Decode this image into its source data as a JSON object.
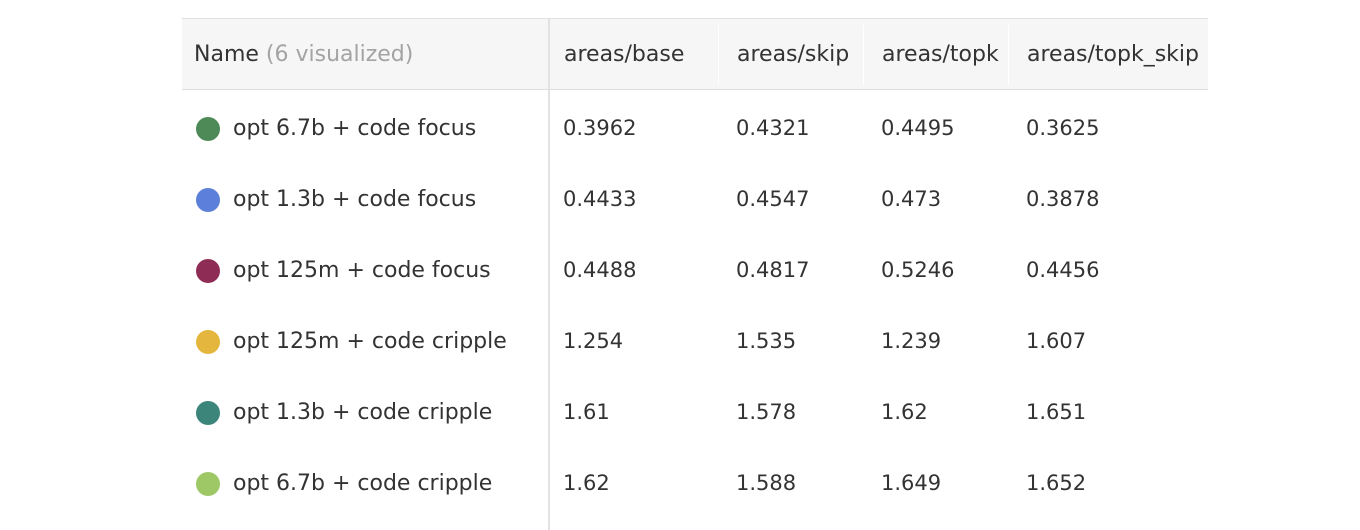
{
  "table": {
    "name_header": "Name",
    "name_header_count": "(6 visualized)",
    "columns": [
      "areas/base",
      "areas/skip",
      "areas/topk",
      "areas/topk_skip"
    ],
    "rows": [
      {
        "name": "opt 6.7b + code focus",
        "color": "#4e8a57",
        "values": [
          "0.3962",
          "0.4321",
          "0.4495",
          "0.3625"
        ]
      },
      {
        "name": "opt 1.3b + code focus",
        "color": "#5b7fdb",
        "values": [
          "0.4433",
          "0.4547",
          "0.473",
          "0.3878"
        ]
      },
      {
        "name": "opt 125m + code focus",
        "color": "#8e2c56",
        "values": [
          "0.4488",
          "0.4817",
          "0.5246",
          "0.4456"
        ]
      },
      {
        "name": "opt 125m + code cripple",
        "color": "#e5b63e",
        "values": [
          "1.254",
          "1.535",
          "1.239",
          "1.607"
        ]
      },
      {
        "name": "opt 1.3b + code cripple",
        "color": "#3c857b",
        "values": [
          "1.61",
          "1.578",
          "1.62",
          "1.651"
        ]
      },
      {
        "name": "opt 6.7b + code cripple",
        "color": "#9dc865",
        "values": [
          "1.62",
          "1.588",
          "1.649",
          "1.652"
        ]
      }
    ]
  }
}
